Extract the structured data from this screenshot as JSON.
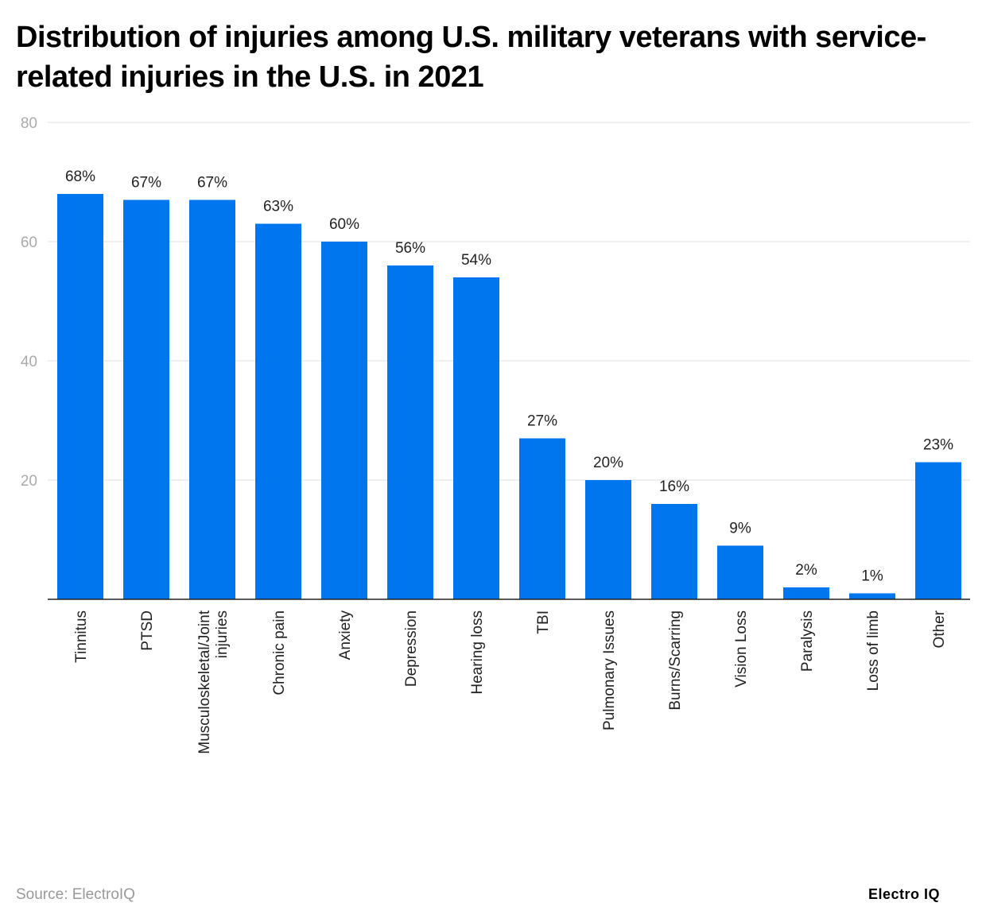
{
  "chart_data": {
    "type": "bar",
    "title": "Distribution of injuries among U.S. military veterans with service-related injuries in the U.S. in 2021",
    "categories": [
      "Tinnitus",
      "PTSD",
      "Musculoskeletal/Joint injuries",
      "Chronic pain",
      "Anxiety",
      "Depression",
      "Hearing loss",
      "TBI",
      "Pulmonary Issues",
      "Burns/Scarring",
      "Vision Loss",
      "Paralysis",
      "Loss of limb",
      "Other"
    ],
    "values": [
      68,
      67,
      67,
      63,
      60,
      56,
      54,
      27,
      20,
      16,
      9,
      2,
      1,
      23
    ],
    "data_labels": [
      "68%",
      "67%",
      "67%",
      "63%",
      "60%",
      "56%",
      "54%",
      "27%",
      "20%",
      "16%",
      "9%",
      "2%",
      "1%",
      "23%"
    ],
    "ylim": [
      0,
      80
    ],
    "yticks": [
      20,
      40,
      60,
      80
    ],
    "xlabel": "",
    "ylabel": "",
    "grid": true,
    "bar_color": "#0076EE"
  },
  "source": "Source: ElectroIQ",
  "logo": "Electro IQ"
}
